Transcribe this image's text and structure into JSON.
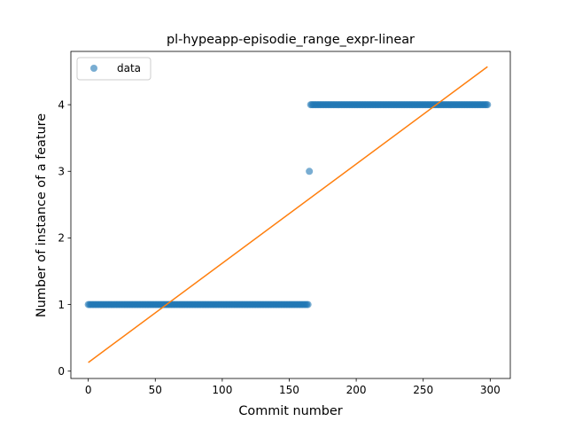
{
  "chart_data": {
    "type": "scatter",
    "title": "pl-hypeapp-episodie_range_expr-linear",
    "xlabel": "Commit number",
    "ylabel": "Number of instance of a feature",
    "xlim": [
      -13,
      315
    ],
    "ylim": [
      -0.11,
      4.8
    ],
    "xticks": [
      0,
      50,
      100,
      150,
      200,
      250,
      300
    ],
    "yticks": [
      0,
      1,
      2,
      3,
      4
    ],
    "grid": false,
    "legend": {
      "position": "top-left",
      "entries": [
        "data"
      ]
    },
    "series": [
      {
        "name": "data",
        "kind": "points",
        "color": "#1f77b4",
        "runs": [
          {
            "x_start": 0,
            "x_end": 164,
            "y": 1
          },
          {
            "x_start": 165,
            "x_end": 165,
            "y": 3
          },
          {
            "x_start": 166,
            "x_end": 298,
            "y": 4
          }
        ]
      },
      {
        "kind": "fit_line",
        "color": "#ff7f0e",
        "x": [
          0,
          298
        ],
        "y": [
          0.13,
          4.57
        ]
      }
    ]
  }
}
